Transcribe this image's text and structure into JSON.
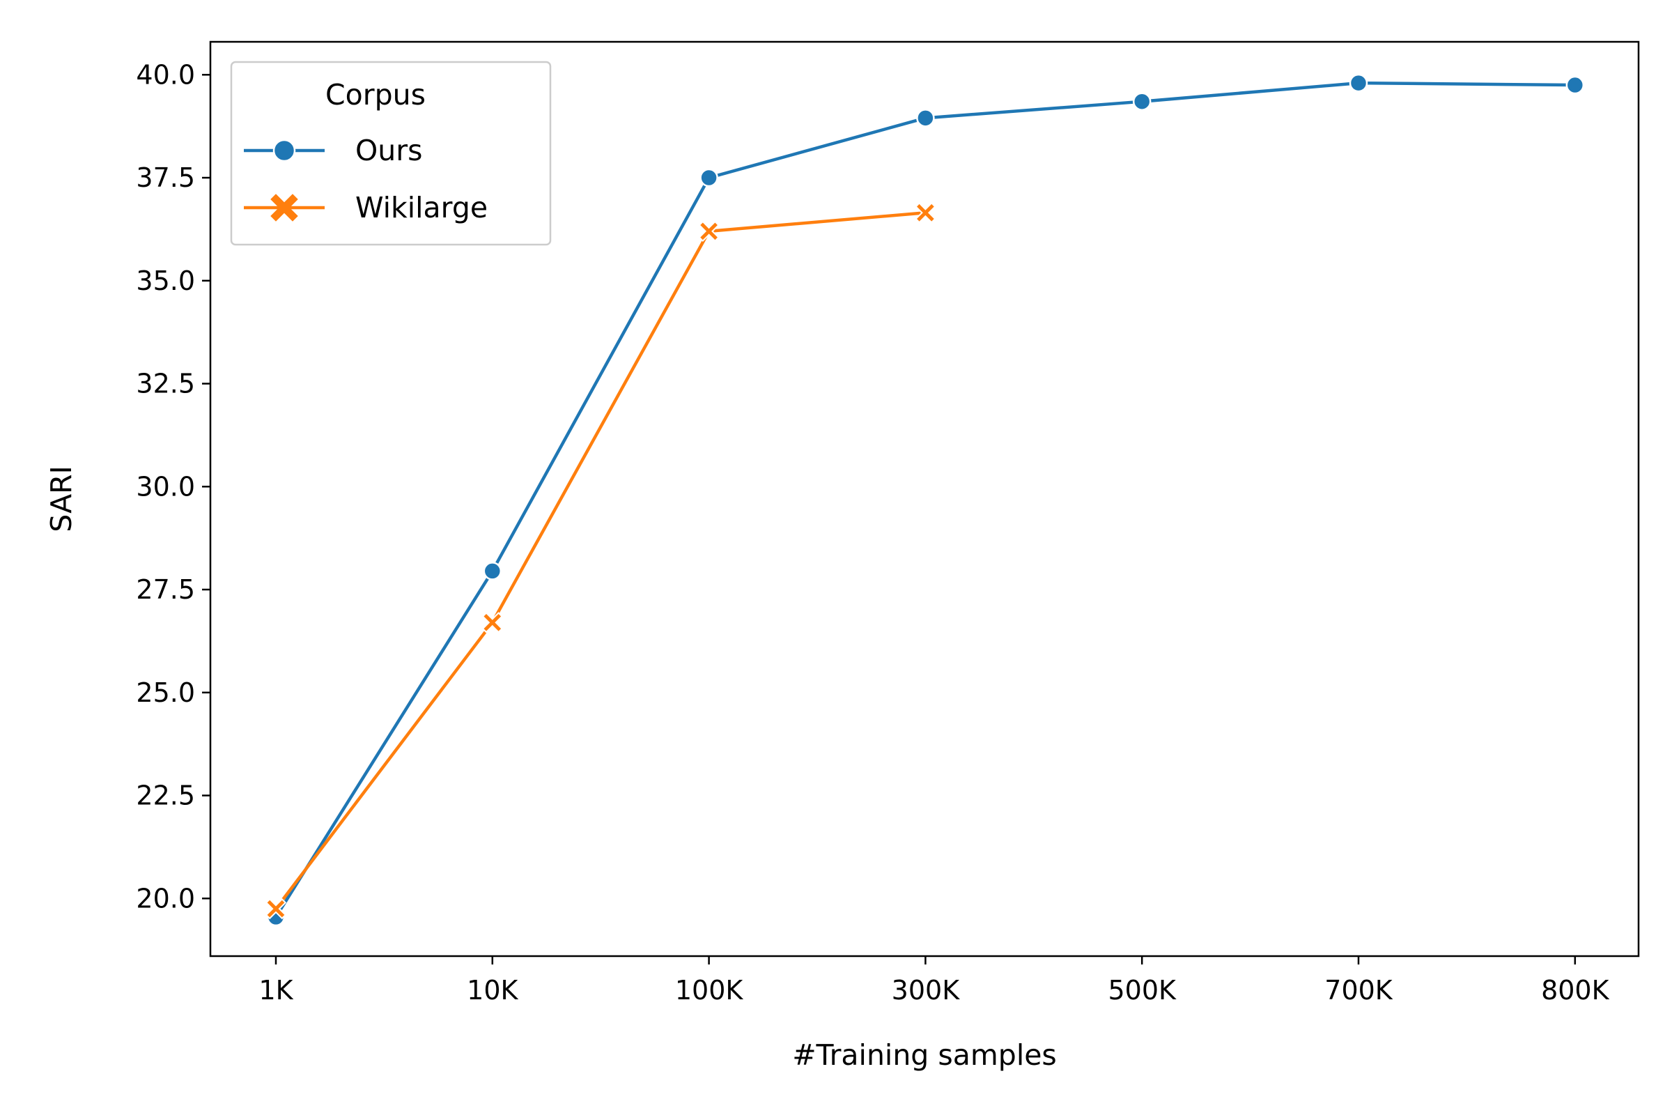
{
  "chart_data": {
    "type": "line",
    "title": "",
    "xlabel": "#Training samples",
    "ylabel": "SARI",
    "categories": [
      "1K",
      "10K",
      "100K",
      "300K",
      "500K",
      "700K",
      "800K"
    ],
    "ylim": [
      18.6,
      40.8
    ],
    "yticks": [
      "20.0",
      "22.5",
      "25.0",
      "27.5",
      "30.0",
      "32.5",
      "35.0",
      "37.5",
      "40.0"
    ],
    "grid": false,
    "legend": {
      "title": "Corpus",
      "position": "top-left"
    },
    "series": [
      {
        "name": "Ours",
        "color": "#1f77b4",
        "marker": "circle",
        "values": [
          19.55,
          27.95,
          37.5,
          38.95,
          39.35,
          39.8,
          39.75
        ]
      },
      {
        "name": "Wikilarge",
        "color": "#ff7f0e",
        "marker": "x",
        "values": [
          19.75,
          26.7,
          36.2,
          36.65,
          null,
          null,
          null
        ]
      }
    ]
  }
}
